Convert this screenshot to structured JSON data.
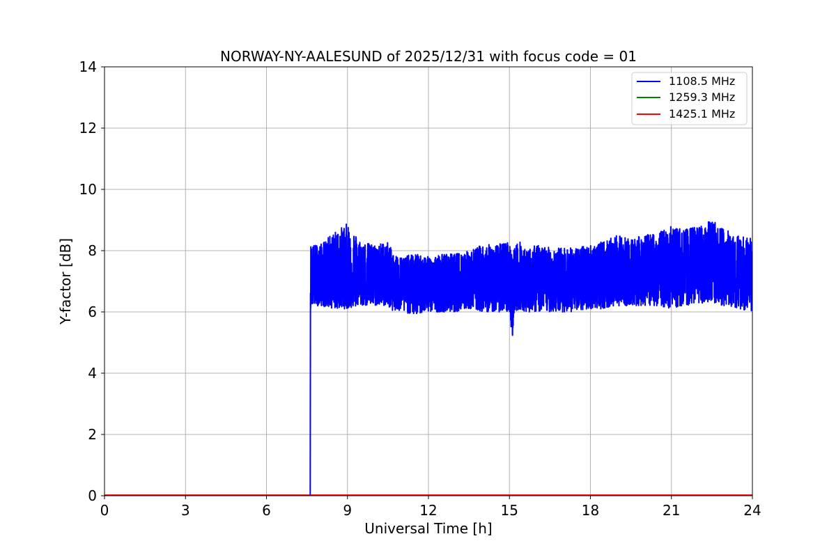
{
  "chart_data": {
    "type": "line",
    "title": "NORWAY-NY-AALESUND of 2025/12/31 with focus code = 01",
    "xlabel": "Universal Time [h]",
    "ylabel": "Y-factor [dB]",
    "xlim": [
      0,
      24
    ],
    "ylim": [
      0,
      14
    ],
    "xticks": [
      0,
      3,
      6,
      9,
      12,
      15,
      18,
      21,
      24
    ],
    "yticks": [
      0,
      2,
      4,
      6,
      8,
      10,
      12,
      14
    ],
    "grid": true,
    "legend_position": "top-right",
    "series": [
      {
        "name": "1108.5 MHz",
        "color": "#0000ff",
        "noisy_band": true,
        "x": [
          0,
          7.62,
          7.63,
          7.65,
          8.0,
          8.5,
          9.0,
          9.5,
          10.0,
          10.5,
          10.7,
          11.0,
          11.5,
          12.0,
          12.5,
          13.0,
          13.5,
          14.0,
          14.5,
          15.0,
          15.1,
          15.2,
          15.4,
          15.6,
          16.0,
          16.5,
          17.0,
          17.5,
          18.0,
          18.5,
          19.0,
          19.5,
          20.0,
          20.5,
          21.0,
          21.5,
          22.0,
          22.5,
          23.0,
          23.5,
          24.0
        ],
        "y_low": [
          0,
          0,
          6.1,
          6.2,
          6.2,
          6.1,
          6.1,
          6.2,
          6.2,
          6.2,
          6.0,
          6.0,
          5.9,
          6.0,
          6.0,
          6.0,
          6.1,
          6.0,
          6.0,
          6.0,
          5.1,
          6.0,
          6.1,
          6.0,
          6.0,
          6.0,
          6.0,
          6.0,
          6.1,
          6.1,
          6.2,
          6.2,
          6.2,
          6.2,
          6.1,
          6.2,
          6.3,
          6.2,
          6.2,
          6.1,
          6.0
        ],
        "y_high": [
          0,
          0,
          8.2,
          8.2,
          8.2,
          8.6,
          8.9,
          8.3,
          8.2,
          8.3,
          7.9,
          7.8,
          7.9,
          7.8,
          7.9,
          7.9,
          8.0,
          8.2,
          8.2,
          8.3,
          7.8,
          8.2,
          8.3,
          8.0,
          8.2,
          8.1,
          8.1,
          8.1,
          8.2,
          8.3,
          8.5,
          8.4,
          8.5,
          8.6,
          8.8,
          8.7,
          8.8,
          9.0,
          8.7,
          8.5,
          8.4
        ],
        "y_center": [
          0,
          0,
          7.1,
          7.1,
          7.1,
          7.1,
          7.1,
          7.1,
          7.1,
          7.1,
          6.9,
          6.9,
          6.9,
          6.9,
          6.9,
          6.9,
          6.9,
          6.9,
          6.9,
          6.9,
          6.9,
          6.9,
          6.9,
          6.9,
          7.0,
          7.0,
          7.0,
          7.0,
          7.0,
          7.1,
          7.2,
          7.2,
          7.2,
          7.2,
          7.3,
          7.3,
          7.3,
          7.3,
          7.3,
          7.3,
          7.2
        ]
      },
      {
        "name": "1259.3 MHz",
        "color": "#008000",
        "x": [
          0,
          24
        ],
        "y": [
          0,
          0
        ]
      },
      {
        "name": "1425.1 MHz",
        "color": "#ff0000",
        "x": [
          0,
          24
        ],
        "y": [
          0.02,
          0.02
        ]
      }
    ]
  }
}
